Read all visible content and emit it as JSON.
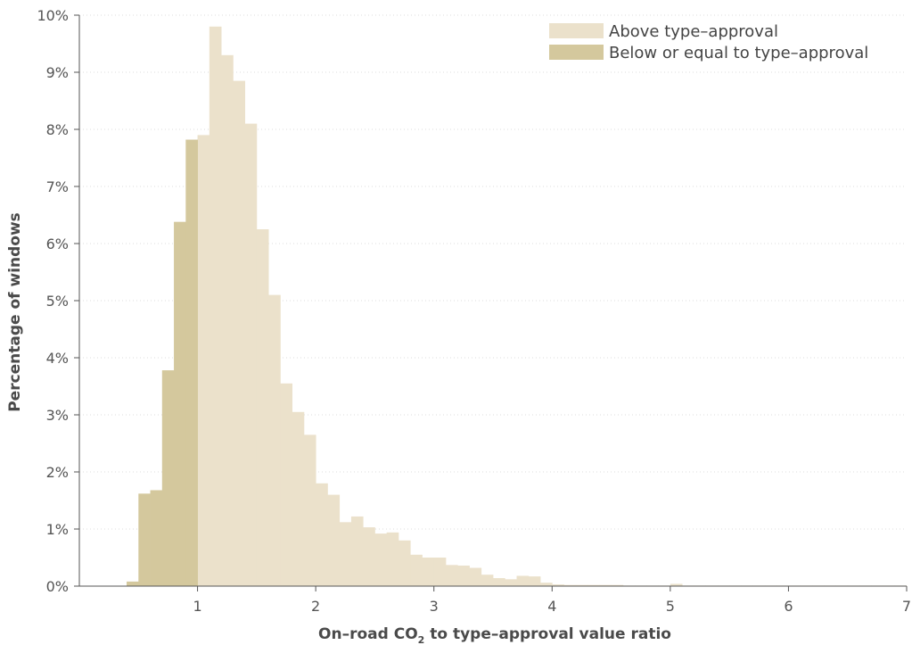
{
  "chart_data": {
    "type": "bar",
    "xlabel": {
      "prefix": "On–road CO",
      "subscript": "2",
      "suffix": " to type–approval value ratio"
    },
    "ylabel": "Percentage of windows",
    "xlim": [
      0,
      7
    ],
    "ylim": [
      0,
      10
    ],
    "x_ticks": [
      1,
      2,
      3,
      4,
      5,
      6,
      7
    ],
    "y_ticks": [
      0,
      1,
      2,
      3,
      4,
      5,
      6,
      7,
      8,
      9,
      10
    ],
    "y_tick_suffix": "%",
    "grid": true,
    "legend_position": "top-right",
    "bin_width": 0.1,
    "series": [
      {
        "name": "Above type–approval",
        "color": "#ebe1cb",
        "bins": [
          [
            1.0,
            7.9
          ],
          [
            1.1,
            9.8
          ],
          [
            1.2,
            9.3
          ],
          [
            1.3,
            8.85
          ],
          [
            1.4,
            8.1
          ],
          [
            1.5,
            6.25
          ],
          [
            1.6,
            5.1
          ],
          [
            1.7,
            3.55
          ],
          [
            1.8,
            3.05
          ],
          [
            1.9,
            2.65
          ],
          [
            2.0,
            1.8
          ],
          [
            2.1,
            1.6
          ],
          [
            2.2,
            1.12
          ],
          [
            2.3,
            1.22
          ],
          [
            2.4,
            1.03
          ],
          [
            2.5,
            0.92
          ],
          [
            2.6,
            0.94
          ],
          [
            2.7,
            0.8
          ],
          [
            2.8,
            0.55
          ],
          [
            2.9,
            0.5
          ],
          [
            3.0,
            0.5
          ],
          [
            3.1,
            0.37
          ],
          [
            3.2,
            0.36
          ],
          [
            3.3,
            0.32
          ],
          [
            3.4,
            0.2
          ],
          [
            3.5,
            0.14
          ],
          [
            3.6,
            0.12
          ],
          [
            3.7,
            0.18
          ],
          [
            3.8,
            0.17
          ],
          [
            3.9,
            0.06
          ],
          [
            4.0,
            0.03
          ],
          [
            4.1,
            0.02
          ],
          [
            4.2,
            0.02
          ],
          [
            4.3,
            0.02
          ],
          [
            4.4,
            0.02
          ],
          [
            4.5,
            0.02
          ],
          [
            4.6,
            0.01
          ],
          [
            4.7,
            0.01
          ],
          [
            4.8,
            0.01
          ],
          [
            4.9,
            0.01
          ],
          [
            5.0,
            0.04
          ],
          [
            5.1,
            0.01
          ],
          [
            5.2,
            0.01
          ],
          [
            5.3,
            0.01
          ],
          [
            5.4,
            0.01
          ],
          [
            5.5,
            0.01
          ],
          [
            5.6,
            0.01
          ],
          [
            5.7,
            0.01
          ],
          [
            5.8,
            0.01
          ],
          [
            5.9,
            0.01
          ],
          [
            6.0,
            0.01
          ],
          [
            6.1,
            0.01
          ],
          [
            6.2,
            0.01
          ],
          [
            6.3,
            0.01
          ],
          [
            6.4,
            0.01
          ],
          [
            6.5,
            0.01
          ],
          [
            6.6,
            0.01
          ],
          [
            6.7,
            0.01
          ],
          [
            6.8,
            0.01
          ],
          [
            6.9,
            0.01
          ]
        ]
      },
      {
        "name": "Below or equal to type–approval",
        "color": "#d4c89d",
        "bins": [
          [
            0.4,
            0.08
          ],
          [
            0.5,
            1.62
          ],
          [
            0.6,
            1.68
          ],
          [
            0.7,
            3.78
          ],
          [
            0.8,
            6.38
          ],
          [
            0.9,
            7.82
          ]
        ]
      }
    ]
  }
}
